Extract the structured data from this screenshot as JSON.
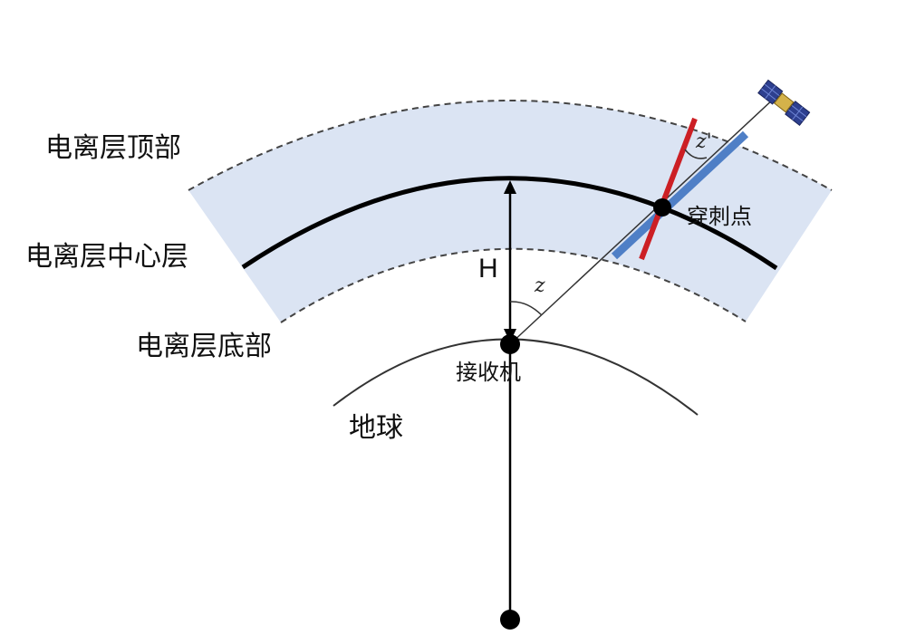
{
  "labels": {
    "ionosphere_top": "电离层顶部",
    "ionosphere_center": "电离层中心层",
    "ionosphere_bottom": "电离层底部",
    "earth": "地球",
    "receiver": "接收机",
    "pierce_point": "穿刺点",
    "height": "H",
    "zenith_angle": "z",
    "zenith_angle_prime": "z'"
  },
  "colors": {
    "ionosphere_fill": "#dbe4f3",
    "pierce_red": "#cc1f24",
    "pierce_blue": "#4f7fc6",
    "line_black": "#000000"
  },
  "icons": {
    "satellite": "satellite-icon"
  }
}
